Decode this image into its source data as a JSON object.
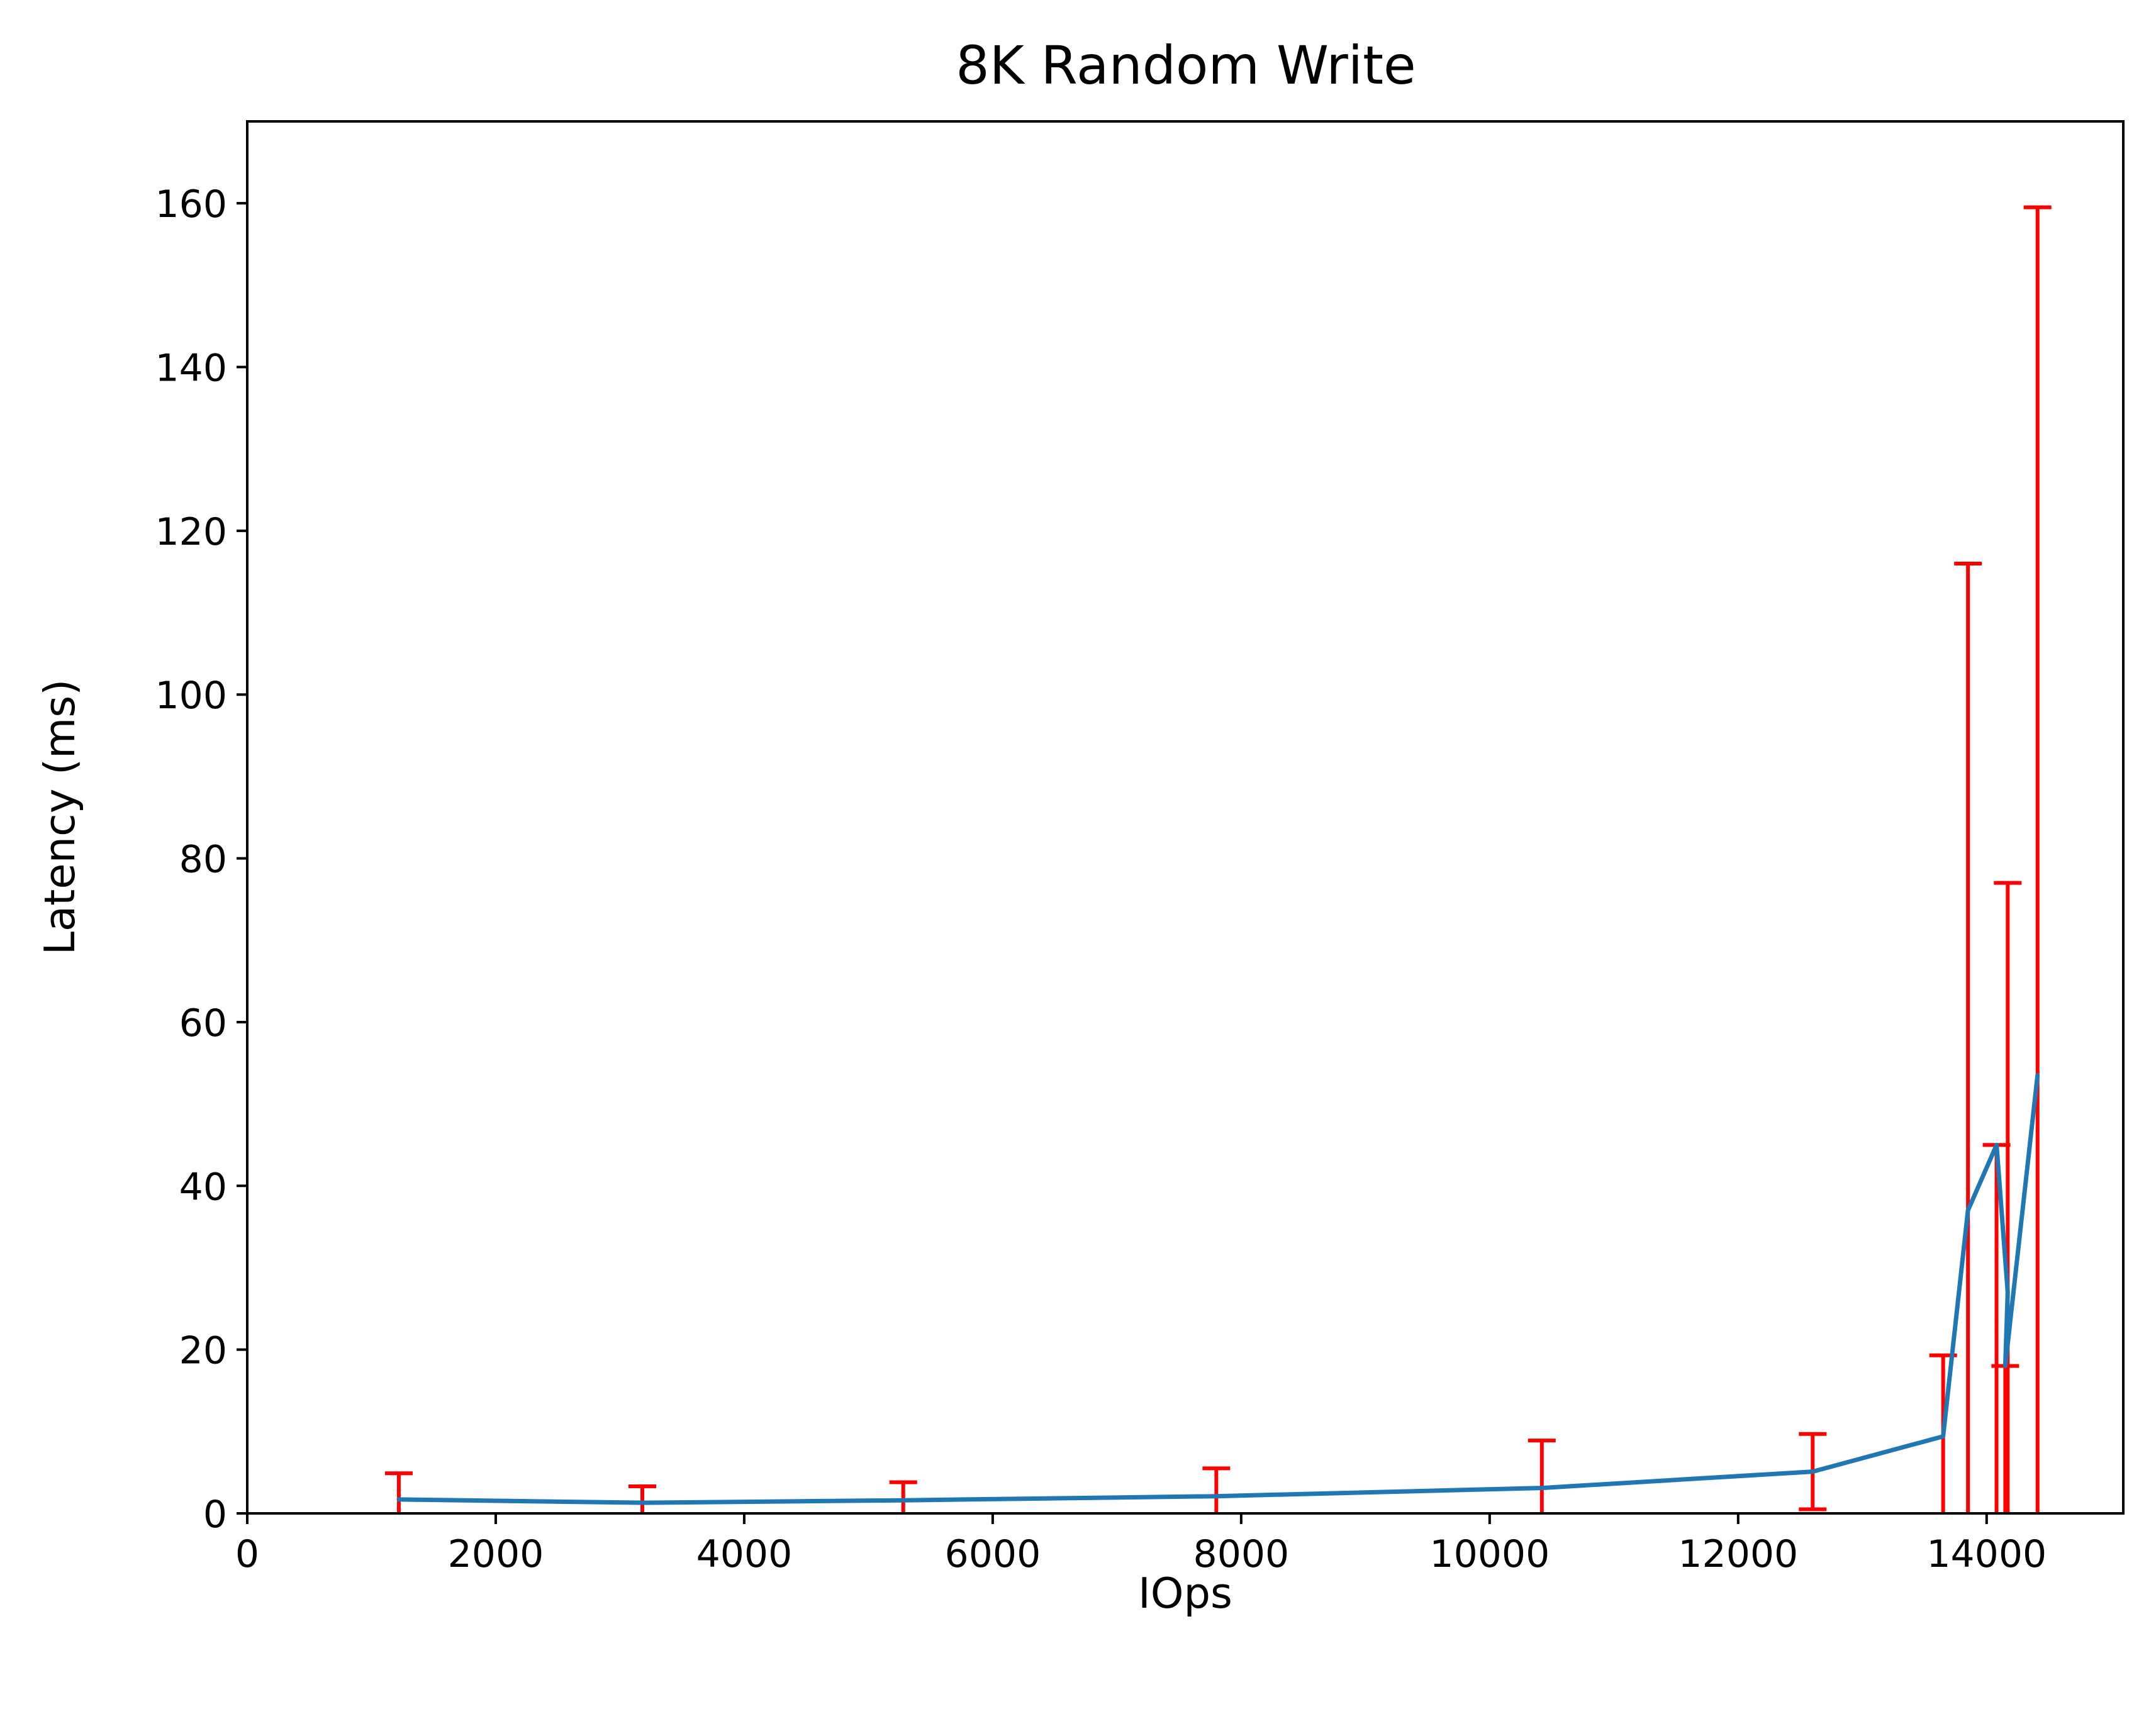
{
  "chart_data": {
    "type": "line",
    "title": "8K  Random Write",
    "xlabel": "IOps",
    "ylabel": "Latency (ms)",
    "xlim": [
      0,
      15100
    ],
    "ylim": [
      0,
      170
    ],
    "xticks": [
      0,
      2000,
      4000,
      6000,
      8000,
      10000,
      12000,
      14000
    ],
    "yticks": [
      0,
      20,
      40,
      60,
      80,
      100,
      120,
      140,
      160
    ],
    "grid": false,
    "line_color": "#1f77b4",
    "error_color": "#ff0000",
    "series": [
      {
        "x": [
          1220,
          3180,
          5280,
          7800,
          10420,
          12600,
          13650,
          13850,
          14080,
          14170,
          14150,
          14410
        ],
        "y": [
          1.7,
          1.3,
          1.6,
          2.1,
          3.1,
          5.1,
          9.4,
          37.0,
          45.0,
          27.0,
          18.0,
          53.5
        ],
        "error_low": [
          0,
          0,
          0,
          0,
          0,
          0.5,
          0,
          0,
          0,
          0,
          0,
          0
        ],
        "error_high": [
          4.9,
          3.3,
          3.8,
          5.5,
          8.9,
          9.7,
          19.3,
          116.0,
          45.0,
          77.0,
          18.0,
          159.5
        ]
      }
    ]
  }
}
